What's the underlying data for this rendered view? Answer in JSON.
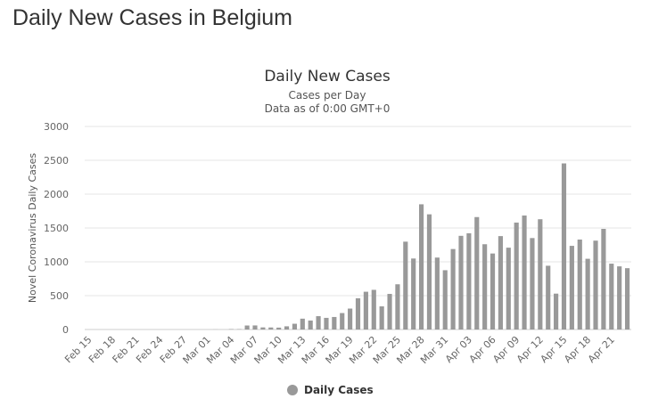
{
  "page": {
    "heading": "Daily New Cases in Belgium"
  },
  "chart_data": {
    "type": "bar",
    "title": "Daily New Cases",
    "subtitle": "Cases per Day",
    "subtitle2": "Data as of 0:00 GMT+0",
    "ylabel": "Novel Coronavirus Daily Cases",
    "xlabel": "",
    "ylim": [
      0,
      3000
    ],
    "yticks": [
      0,
      500,
      1000,
      1500,
      2000,
      2500,
      3000
    ],
    "grid": true,
    "legend_position": "bottom-center",
    "color": "#999999",
    "categories": [
      "Feb 15",
      "Feb 16",
      "Feb 17",
      "Feb 18",
      "Feb 19",
      "Feb 20",
      "Feb 21",
      "Feb 22",
      "Feb 23",
      "Feb 24",
      "Feb 25",
      "Feb 26",
      "Feb 27",
      "Feb 28",
      "Feb 29",
      "Mar 01",
      "Mar 02",
      "Mar 03",
      "Mar 04",
      "Mar 05",
      "Mar 06",
      "Mar 07",
      "Mar 08",
      "Mar 09",
      "Mar 10",
      "Mar 11",
      "Mar 12",
      "Mar 13",
      "Mar 14",
      "Mar 15",
      "Mar 16",
      "Mar 17",
      "Mar 18",
      "Mar 19",
      "Mar 20",
      "Mar 21",
      "Mar 22",
      "Mar 23",
      "Mar 24",
      "Mar 25",
      "Mar 26",
      "Mar 27",
      "Mar 28",
      "Mar 29",
      "Mar 30",
      "Mar 31",
      "Apr 01",
      "Apr 02",
      "Apr 03",
      "Apr 04",
      "Apr 05",
      "Apr 06",
      "Apr 07",
      "Apr 08",
      "Apr 09",
      "Apr 10",
      "Apr 11",
      "Apr 12",
      "Apr 13",
      "Apr 14",
      "Apr 15",
      "Apr 16",
      "Apr 17",
      "Apr 18",
      "Apr 19",
      "Apr 20",
      "Apr 21",
      "Apr 22",
      "Apr 23"
    ],
    "tick_labels": [
      "Feb 15",
      "Feb 18",
      "Feb 21",
      "Feb 24",
      "Feb 27",
      "Mar 01",
      "Mar 04",
      "Mar 07",
      "Mar 10",
      "Mar 13",
      "Mar 16",
      "Mar 19",
      "Mar 22",
      "Mar 25",
      "Mar 28",
      "Mar 31",
      "Apr 03",
      "Apr 06",
      "Apr 09",
      "Apr 12",
      "Apr 15",
      "Apr 18",
      "Apr 21"
    ],
    "series": [
      {
        "name": "Daily Cases",
        "values": [
          0,
          0,
          0,
          0,
          0,
          0,
          0,
          0,
          0,
          0,
          0,
          0,
          0,
          0,
          0,
          0,
          1,
          0,
          6,
          5,
          59,
          60,
          31,
          30,
          28,
          47,
          85,
          160,
          133,
          197,
          172,
          185,
          243,
          309,
          462,
          558,
          586,
          342,
          526,
          668,
          1298,
          1049,
          1850,
          1702,
          1063,
          876,
          1189,
          1384,
          1422,
          1661,
          1260,
          1123,
          1380,
          1209,
          1580,
          1684,
          1351,
          1629,
          942,
          530,
          2454,
          1236,
          1329,
          1045,
          1313,
          1487,
          973,
          933,
          906
        ]
      }
    ]
  }
}
